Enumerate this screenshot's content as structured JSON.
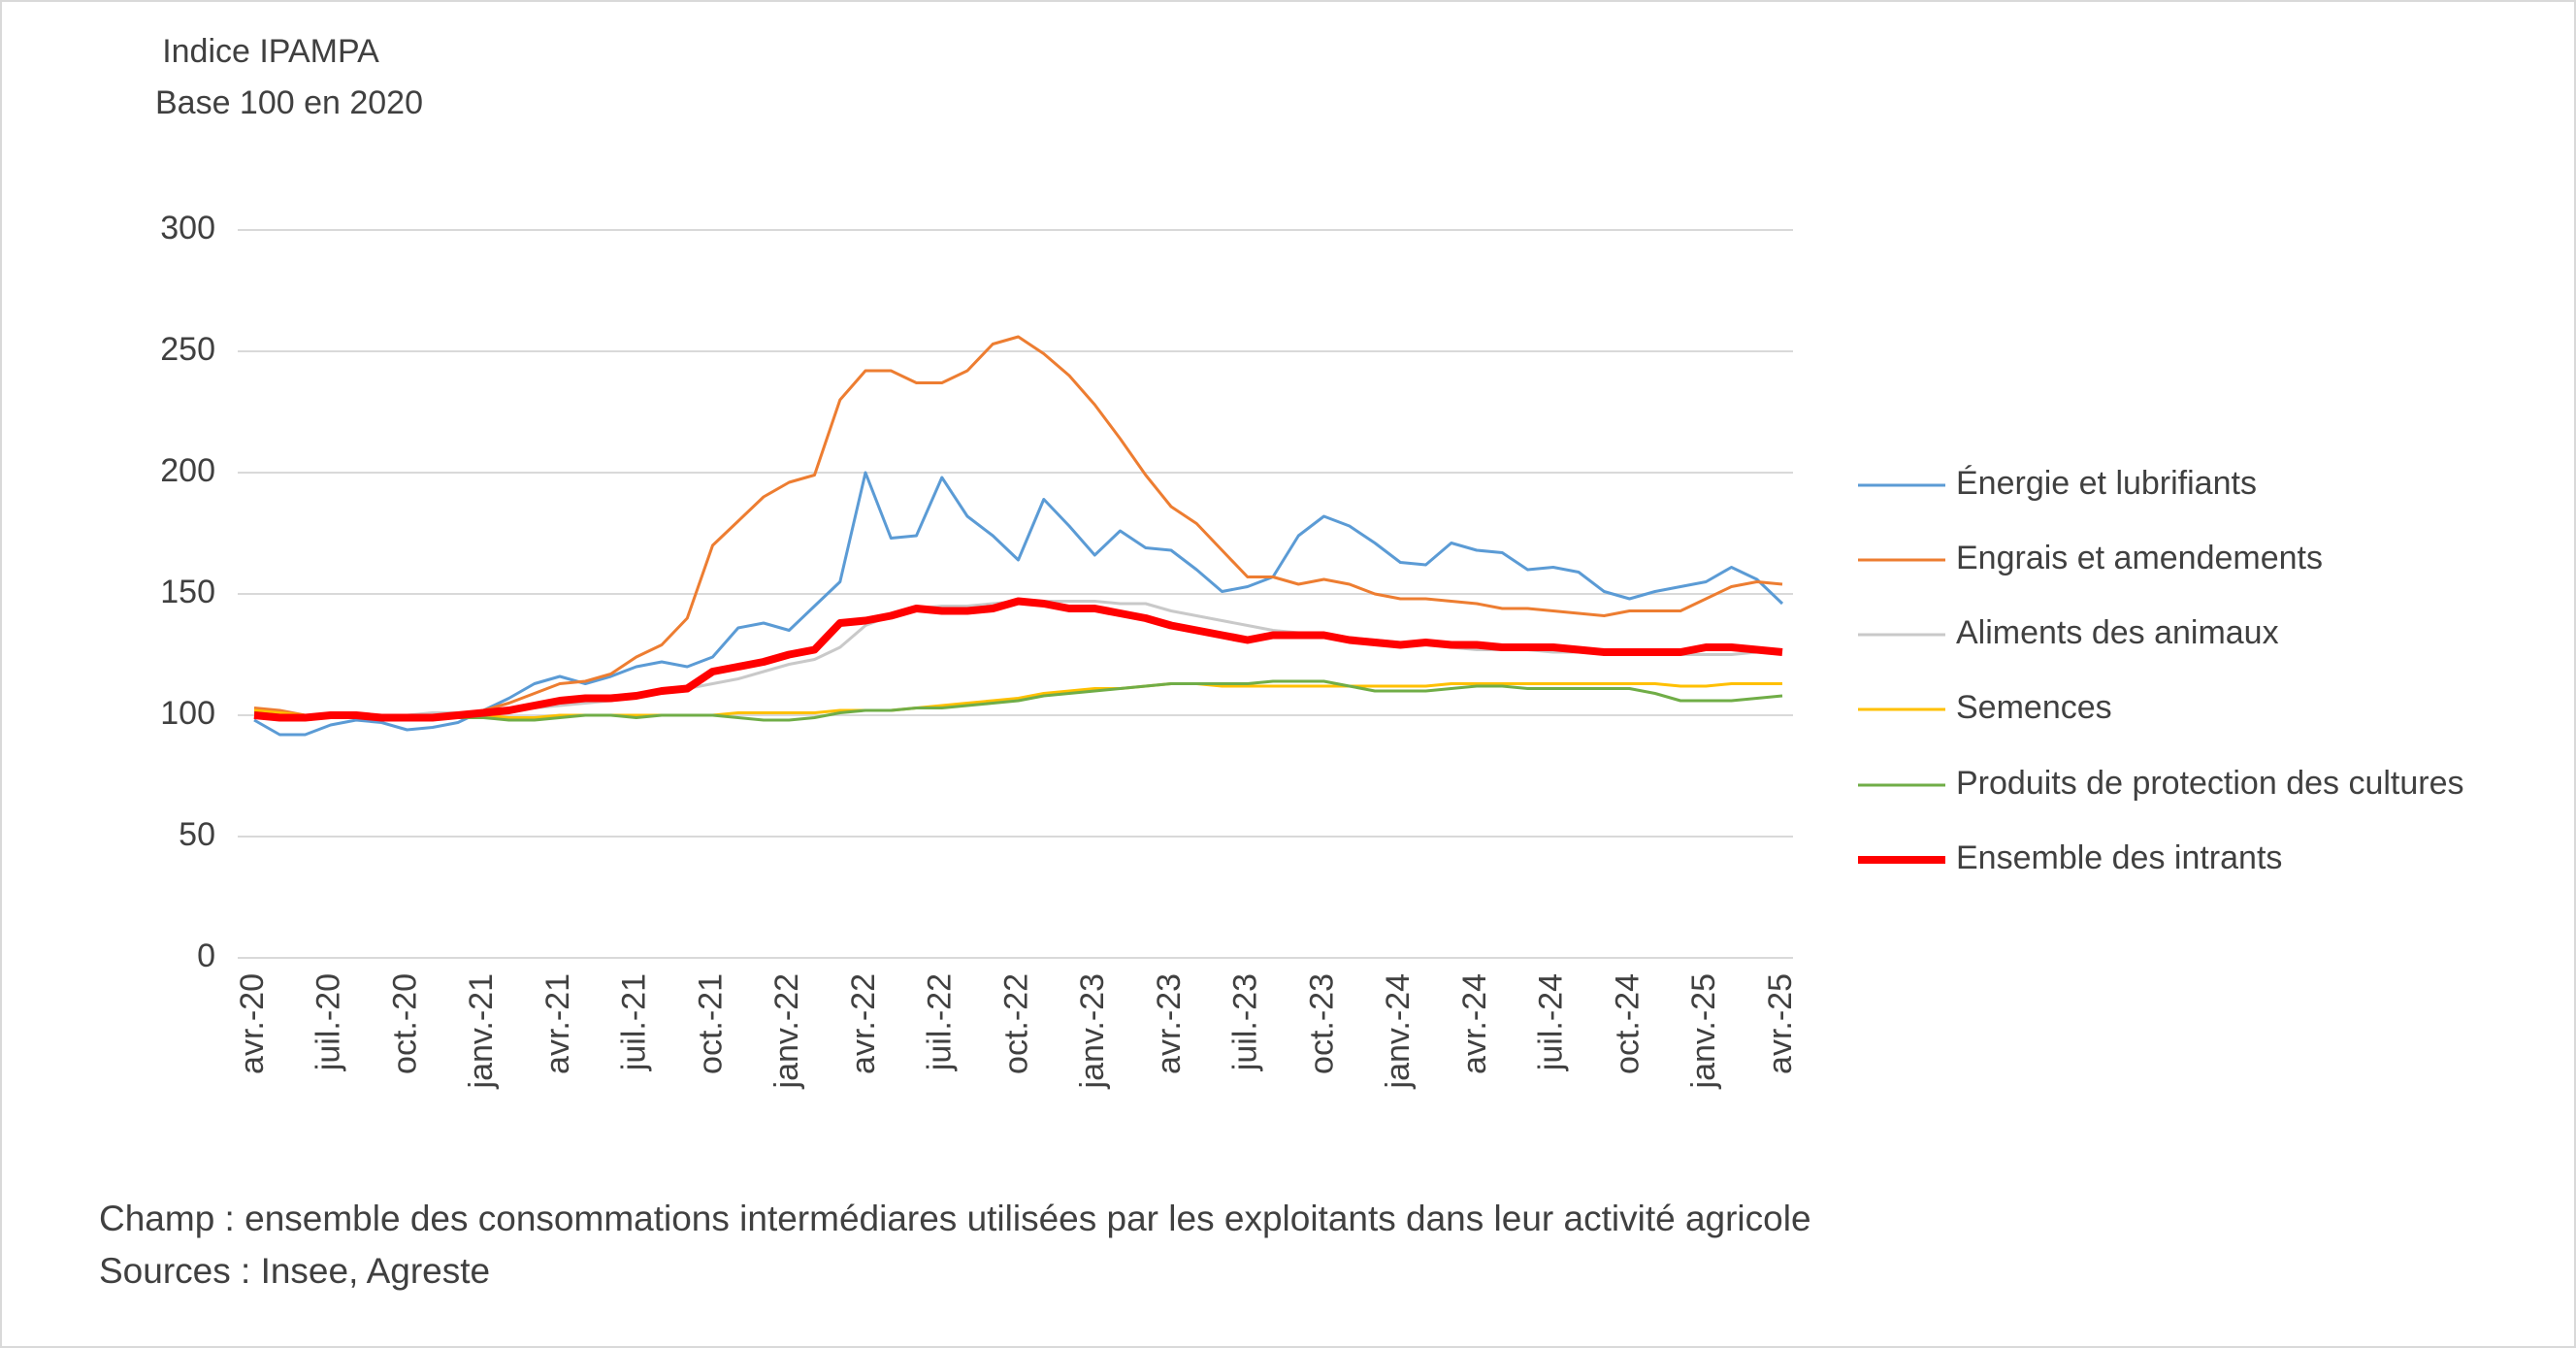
{
  "chart_data": {
    "type": "line",
    "title": "Indice IPAMPA",
    "subtitle": "Base 100 en 2020",
    "categories": [
      "avr.-20",
      null,
      null,
      "juil.-20",
      null,
      null,
      "oct.-20",
      null,
      null,
      "janv.-21",
      null,
      null,
      "avr.-21",
      null,
      null,
      "juil.-21",
      null,
      null,
      "oct.-21",
      null,
      null,
      "janv.-22",
      null,
      null,
      "avr.-22",
      null,
      null,
      "juil.-22",
      null,
      null,
      "oct.-22",
      null,
      null,
      "janv.-23",
      null,
      null,
      "avr.-23",
      null,
      null,
      "juil.-23",
      null,
      null,
      "oct.-23",
      null,
      null,
      "janv.-24",
      null,
      null,
      "avr.-24",
      null,
      null,
      "juil.-24",
      null,
      null,
      "oct.-24",
      null,
      null,
      "janv.-25",
      null,
      null,
      "avr.-25"
    ],
    "series": [
      {
        "name": "Énergie et lubrifiants",
        "color": "#5b9bd5",
        "width": 3,
        "values": [
          98,
          92,
          92,
          96,
          98,
          97,
          94,
          95,
          97,
          102,
          107,
          113,
          116,
          113,
          116,
          120,
          122,
          120,
          124,
          136,
          138,
          135,
          145,
          155,
          200,
          173,
          174,
          198,
          182,
          174,
          164,
          189,
          178,
          166,
          176,
          169,
          168,
          160,
          151,
          153,
          157,
          174,
          182,
          178,
          171,
          163,
          162,
          171,
          168,
          167,
          160,
          161,
          159,
          151,
          148,
          151,
          153,
          155,
          161,
          156,
          146
        ]
      },
      {
        "name": "Engrais et amendements",
        "color": "#ed7d31",
        "width": 3,
        "values": [
          103,
          102,
          100,
          100,
          99,
          99,
          98,
          99,
          100,
          102,
          105,
          109,
          113,
          114,
          117,
          124,
          129,
          140,
          170,
          180,
          190,
          196,
          199,
          230,
          242,
          242,
          237,
          237,
          242,
          253,
          256,
          249,
          240,
          228,
          214,
          199,
          186,
          179,
          168,
          157,
          157,
          154,
          156,
          154,
          150,
          148,
          148,
          147,
          146,
          144,
          144,
          143,
          142,
          141,
          143,
          143,
          143,
          148,
          153,
          155,
          154
        ]
      },
      {
        "name": "Aliments des animaux",
        "color": "#c9c9c9",
        "width": 3,
        "values": [
          101,
          100,
          100,
          100,
          100,
          100,
          100,
          101,
          101,
          101,
          102,
          103,
          104,
          105,
          106,
          108,
          109,
          111,
          113,
          115,
          118,
          121,
          123,
          128,
          137,
          141,
          144,
          145,
          145,
          146,
          147,
          147,
          147,
          147,
          146,
          146,
          143,
          141,
          139,
          137,
          135,
          134,
          133,
          132,
          131,
          130,
          130,
          128,
          127,
          127,
          127,
          126,
          126,
          126,
          125,
          125,
          125,
          125,
          125,
          126,
          126
        ]
      },
      {
        "name": "Semences",
        "color": "#ffc000",
        "width": 3,
        "values": [
          102,
          101,
          100,
          100,
          100,
          100,
          100,
          100,
          100,
          100,
          99,
          99,
          100,
          100,
          100,
          100,
          100,
          100,
          100,
          101,
          101,
          101,
          101,
          102,
          102,
          102,
          103,
          104,
          105,
          106,
          107,
          109,
          110,
          111,
          111,
          112,
          113,
          113,
          112,
          112,
          112,
          112,
          112,
          112,
          112,
          112,
          112,
          113,
          113,
          113,
          113,
          113,
          113,
          113,
          113,
          113,
          112,
          112,
          113,
          113,
          113
        ]
      },
      {
        "name": "Produits de protection des cultures",
        "color": "#70ad47",
        "width": 3,
        "values": [
          101,
          100,
          100,
          100,
          100,
          100,
          99,
          99,
          99,
          99,
          98,
          98,
          99,
          100,
          100,
          99,
          100,
          100,
          100,
          99,
          98,
          98,
          99,
          101,
          102,
          102,
          103,
          103,
          104,
          105,
          106,
          108,
          109,
          110,
          111,
          112,
          113,
          113,
          113,
          113,
          114,
          114,
          114,
          112,
          110,
          110,
          110,
          111,
          112,
          112,
          111,
          111,
          111,
          111,
          111,
          109,
          106,
          106,
          106,
          107,
          108
        ]
      },
      {
        "name": "Ensemble des intrants",
        "color": "#ff0000",
        "width": 8,
        "values": [
          100,
          99,
          99,
          100,
          100,
          99,
          99,
          99,
          100,
          101,
          102,
          104,
          106,
          107,
          107,
          108,
          110,
          111,
          118,
          120,
          122,
          125,
          127,
          138,
          139,
          141,
          144,
          143,
          143,
          144,
          147,
          146,
          144,
          144,
          142,
          140,
          137,
          135,
          133,
          131,
          133,
          133,
          133,
          131,
          130,
          129,
          130,
          129,
          129,
          128,
          128,
          128,
          127,
          126,
          126,
          126,
          126,
          128,
          128,
          127,
          126
        ]
      }
    ],
    "ylim": [
      0,
      300
    ],
    "yticks": [
      0,
      50,
      100,
      150,
      200,
      250,
      300
    ],
    "grid": true,
    "legend": "right",
    "notes": [
      "Champ : ensemble des consommations intermédiares utilisées par les exploitants dans leur activité agricole",
      "Sources : Insee, Agreste"
    ]
  }
}
